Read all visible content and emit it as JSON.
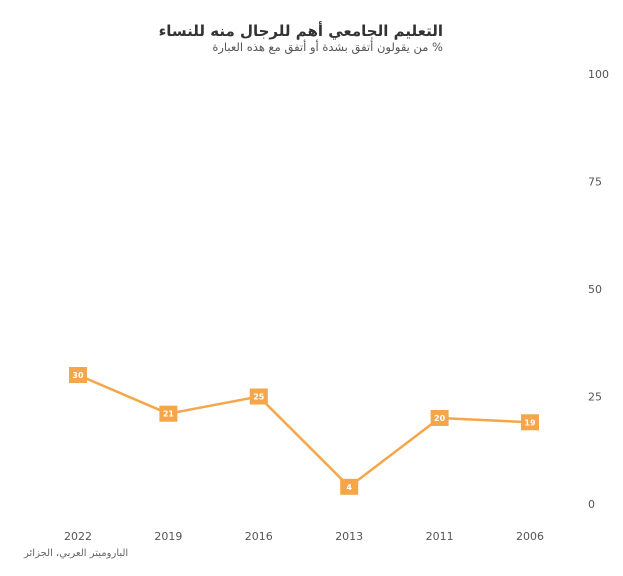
{
  "chart_data": {
    "type": "line",
    "title": "التعليم الجامعي أهم للرجال منه للنساء",
    "subtitle": "% من يقولون أتفق بشدة أو أتفق مع هذه العبارة",
    "source": "الباروميتر العربي، الجزائر",
    "categories": [
      "2022",
      "2019",
      "2016",
      "2013",
      "2011",
      "2006"
    ],
    "series": [
      {
        "values": [
          30,
          21,
          25,
          4,
          20,
          19
        ]
      }
    ],
    "ylim": [
      0,
      100
    ],
    "yticks": [
      0,
      25,
      50,
      75,
      100
    ],
    "y_axis_side": "right",
    "grid": false,
    "color": "#F5A54A"
  }
}
